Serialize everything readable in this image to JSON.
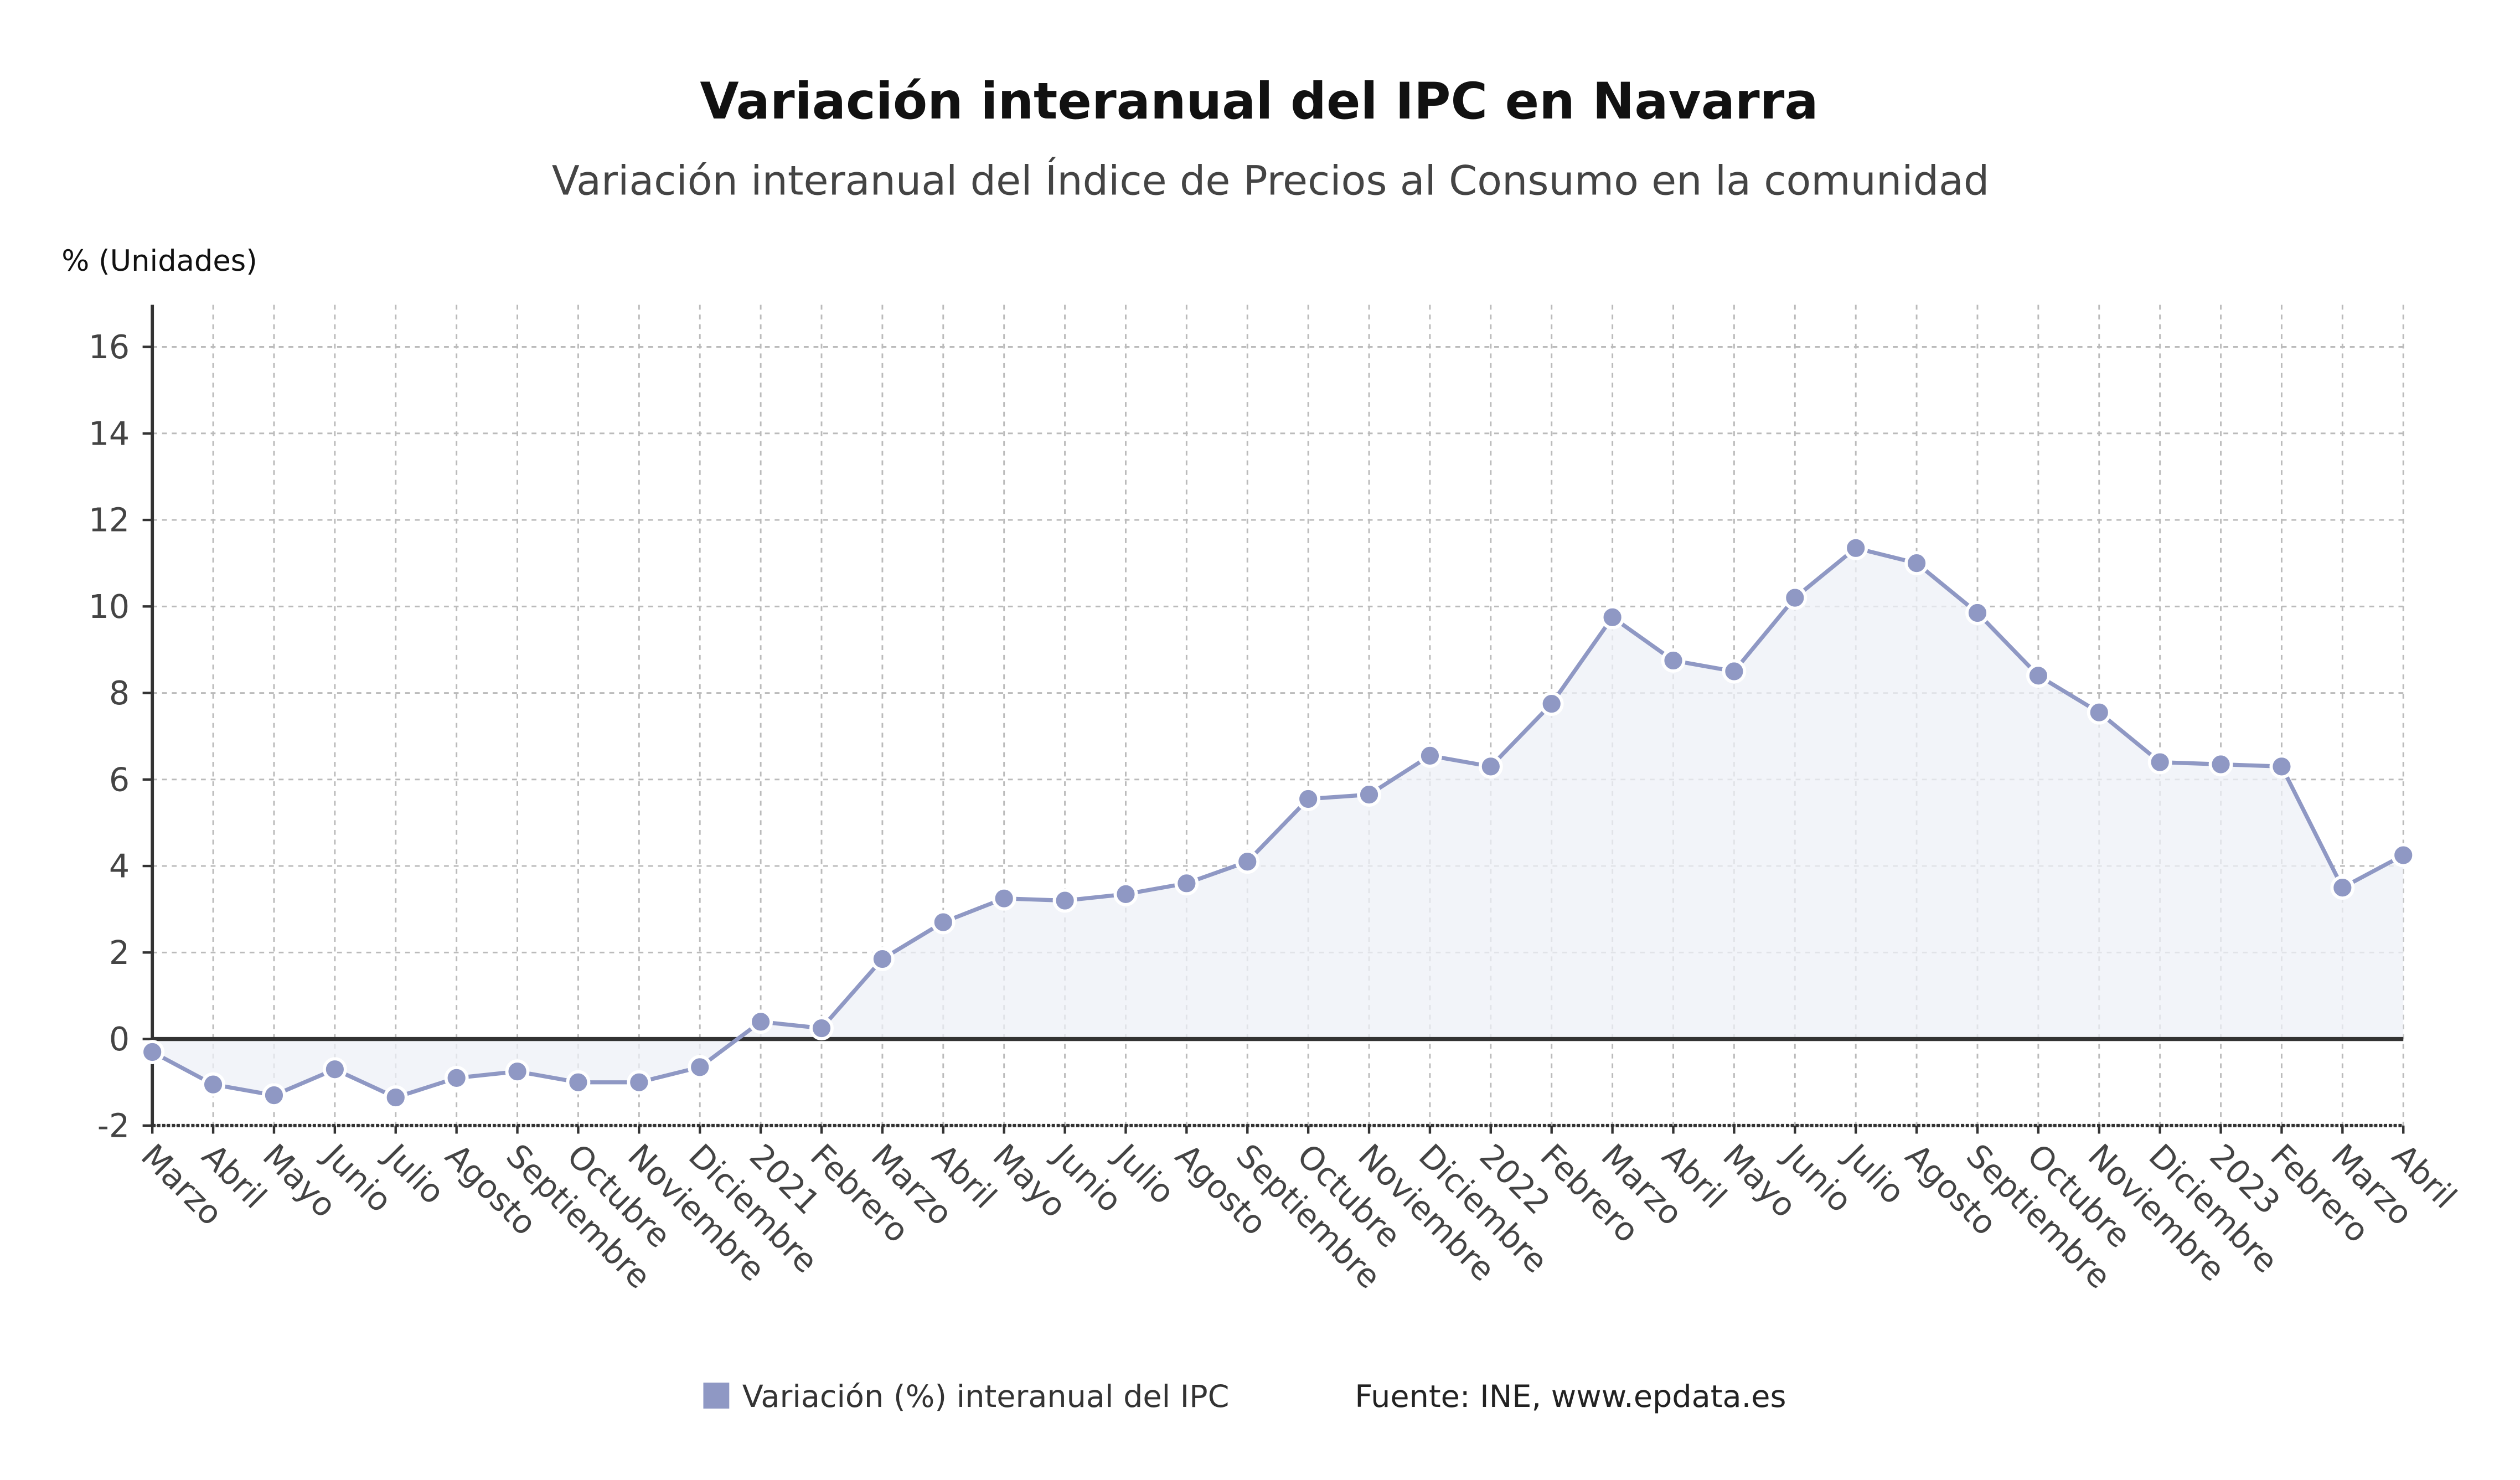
{
  "chart_data": {
    "type": "area",
    "title": "Variación interanual del IPC en Navarra",
    "subtitle": "Variación interanual del Índice de Precios al Consumo en la comunidad",
    "ylabel": "% (Unidades)",
    "xlabel": "",
    "ylim": [
      -2,
      17
    ],
    "yticks": [
      -2,
      0,
      2,
      4,
      6,
      8,
      10,
      12,
      14,
      16
    ],
    "grid": true,
    "legend_position": "bottom",
    "source": "Fuente: INE, www.epdata.es",
    "colors": {
      "series": "#8f98c4",
      "fill": "#eef0f7",
      "zero_line": "#333333",
      "grid": "#bbbbbb"
    },
    "categories": [
      "Marzo",
      "Abril",
      "Mayo",
      "Junio",
      "Julio",
      "Agosto",
      "Septiembre",
      "Octubre",
      "Noviembre",
      "Diciembre",
      "2021",
      "Febrero",
      "Marzo",
      "Abril",
      "Mayo",
      "Junio",
      "Julio",
      "Agosto",
      "Septiembre",
      "Octubre",
      "Noviembre",
      "Diciembre",
      "2022",
      "Febrero",
      "Marzo",
      "Abril",
      "Mayo",
      "Junio",
      "Julio",
      "Agosto",
      "Septiembre",
      "Octubre",
      "Noviembre",
      "Diciembre",
      "2023",
      "Febrero",
      "Marzo",
      "Abril"
    ],
    "series": [
      {
        "name": "Variación (%) interanual del IPC",
        "values": [
          -0.3,
          -1.05,
          -1.3,
          -0.7,
          -1.35,
          -0.9,
          -0.75,
          -1.0,
          -1.0,
          -0.65,
          0.4,
          0.25,
          1.85,
          2.7,
          3.25,
          3.2,
          3.35,
          3.6,
          4.1,
          5.55,
          5.65,
          6.55,
          6.3,
          7.75,
          9.75,
          8.75,
          8.5,
          10.2,
          11.35,
          11.0,
          9.85,
          8.4,
          7.55,
          6.4,
          6.35,
          6.3,
          3.5,
          4.25
        ]
      }
    ]
  }
}
